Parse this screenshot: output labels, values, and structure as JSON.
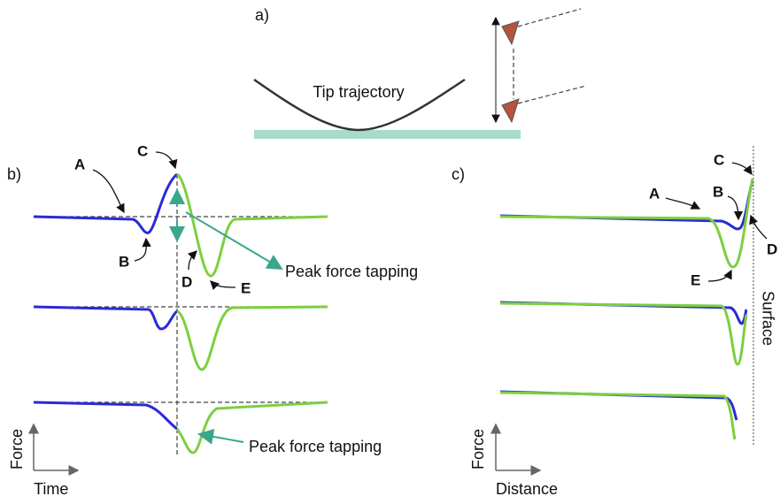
{
  "panel_a": {
    "label": "a)",
    "trajectory_label": "Tip trajectory"
  },
  "panel_b": {
    "label": "b)",
    "points": [
      "A",
      "B",
      "C",
      "D",
      "E"
    ],
    "annotations": [
      "Peak force tapping",
      "Peak force tapping"
    ],
    "y_axis": "Force",
    "x_axis": "Time"
  },
  "panel_c": {
    "label": "c)",
    "points": [
      "A",
      "B",
      "C",
      "D",
      "E"
    ],
    "surface_label": "Surface",
    "y_axis": "Force",
    "x_axis": "Distance"
  }
}
